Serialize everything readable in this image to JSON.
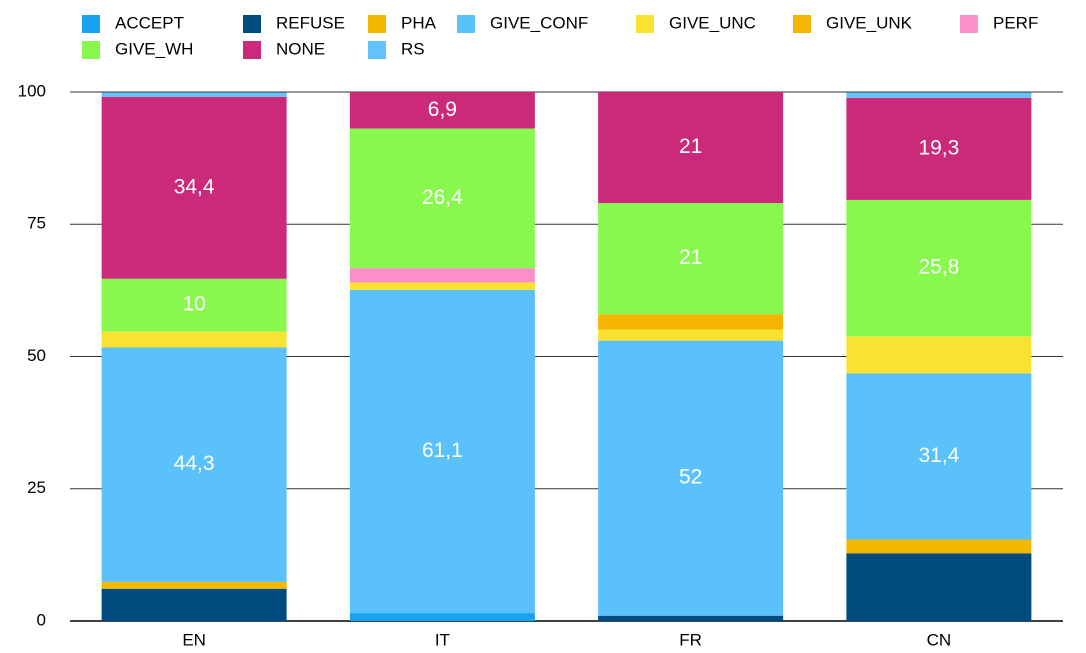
{
  "chart_data": {
    "type": "stacked_bar",
    "categories": [
      "EN",
      "IT",
      "FR",
      "CN"
    ],
    "series": [
      {
        "name": "ACCEPT",
        "color": "#1aa1f0",
        "values": [
          0,
          1.5,
          0,
          0
        ],
        "value_labels": [
          null,
          null,
          null,
          null
        ]
      },
      {
        "name": "REFUSE",
        "color": "#004c7f",
        "values": [
          6.1,
          0,
          1,
          12.8
        ],
        "value_labels": [
          null,
          null,
          null,
          null
        ]
      },
      {
        "name": "PHA",
        "color": "#f5b800",
        "values": [
          1.3,
          0,
          0,
          2.6
        ],
        "value_labels": [
          null,
          null,
          null,
          null
        ]
      },
      {
        "name": "GIVE_CONF",
        "color": "#5ac1fb",
        "values": [
          44.3,
          61.1,
          52,
          31.4
        ],
        "value_labels": [
          "44,3",
          "61,1",
          "52",
          "31,4"
        ]
      },
      {
        "name": "GIVE_UNC",
        "color": "#fae232",
        "values": [
          3,
          1.4,
          2.1,
          7
        ],
        "value_labels": [
          null,
          null,
          null,
          null
        ]
      },
      {
        "name": "GIVE_UNK",
        "color": "#f4b400",
        "values": [
          0,
          0,
          2.9,
          0
        ],
        "value_labels": [
          null,
          null,
          null,
          null
        ]
      },
      {
        "name": "PERF",
        "color": "#fd8fc8",
        "values": [
          0,
          2.7,
          0,
          0
        ],
        "value_labels": [
          null,
          null,
          null,
          null
        ]
      },
      {
        "name": "GIVE_WH",
        "color": "#88f84f",
        "values": [
          10,
          26.4,
          21,
          25.8
        ],
        "value_labels": [
          "10",
          "26,4",
          "21",
          "25,8"
        ]
      },
      {
        "name": "NONE",
        "color": "#cb2a7b",
        "values": [
          34.4,
          6.9,
          21,
          19.3
        ],
        "value_labels": [
          "34,4",
          "6,9",
          "21",
          "19,3"
        ]
      },
      {
        "name": "RS",
        "color": "#62c3fb",
        "values": [
          0.8,
          0,
          0,
          1
        ],
        "value_labels": [
          null,
          null,
          null,
          null
        ]
      }
    ],
    "ylim": [
      0,
      100
    ],
    "yticks": [
      0,
      25,
      50,
      75,
      100
    ],
    "grid": true,
    "legend": "top-left"
  }
}
